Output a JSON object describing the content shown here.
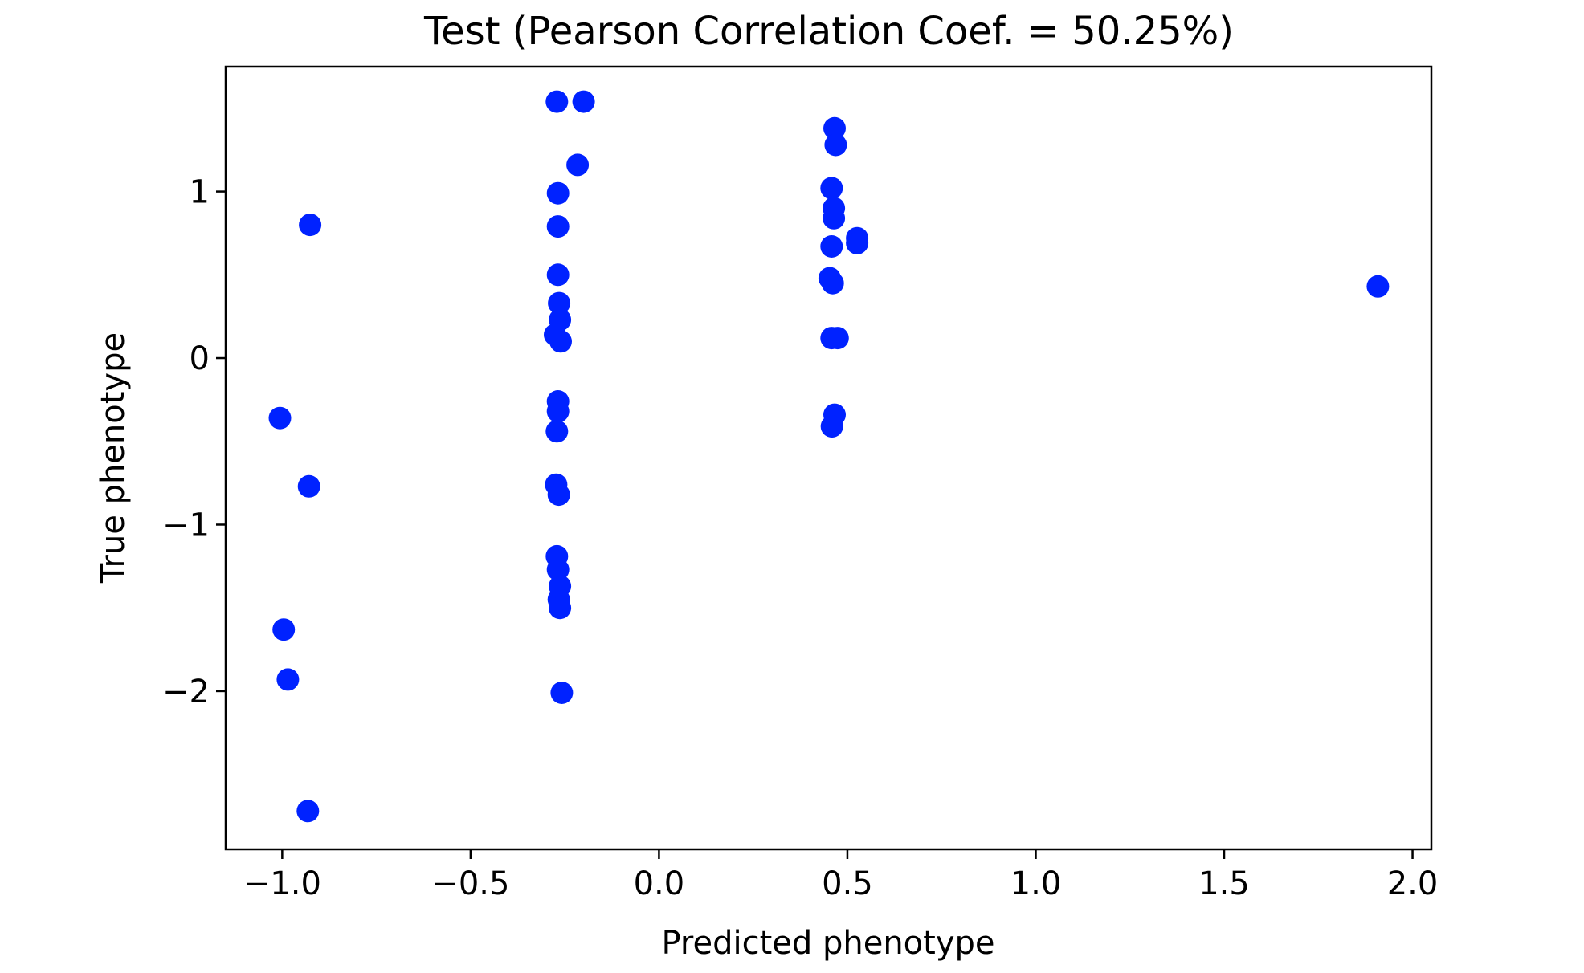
{
  "chart_data": {
    "type": "scatter",
    "title": "Test (Pearson Correlation Coef. = 50.25%)",
    "xlabel": "Predicted phenotype",
    "ylabel": "True phenotype",
    "xlim": [
      -1.15,
      2.05
    ],
    "ylim": [
      -2.95,
      1.75
    ],
    "grid": false,
    "x_ticks": [
      {
        "value": -1.0,
        "label": "−1.0"
      },
      {
        "value": -0.5,
        "label": "−0.5"
      },
      {
        "value": 0.0,
        "label": "0.0"
      },
      {
        "value": 0.5,
        "label": "0.5"
      },
      {
        "value": 1.0,
        "label": "1.0"
      },
      {
        "value": 1.5,
        "label": "1.5"
      },
      {
        "value": 2.0,
        "label": "2.0"
      }
    ],
    "y_ticks": [
      {
        "value": 1,
        "label": "1"
      },
      {
        "value": 0,
        "label": "0"
      },
      {
        "value": -1,
        "label": "−1"
      },
      {
        "value": -2,
        "label": "−2"
      }
    ],
    "marker_color": "#0022ff",
    "points": [
      {
        "x": -0.926,
        "y": 0.8
      },
      {
        "x": -1.006,
        "y": -0.36
      },
      {
        "x": -0.929,
        "y": -0.77
      },
      {
        "x": -0.996,
        "y": -1.63
      },
      {
        "x": -0.985,
        "y": -1.93
      },
      {
        "x": -0.932,
        "y": -2.72
      },
      {
        "x": -0.271,
        "y": 1.54
      },
      {
        "x": -0.2,
        "y": 1.54
      },
      {
        "x": -0.216,
        "y": 1.16
      },
      {
        "x": -0.268,
        "y": 0.99
      },
      {
        "x": -0.268,
        "y": 0.79
      },
      {
        "x": -0.268,
        "y": 0.5
      },
      {
        "x": -0.265,
        "y": 0.33
      },
      {
        "x": -0.263,
        "y": 0.23
      },
      {
        "x": -0.276,
        "y": 0.14
      },
      {
        "x": -0.261,
        "y": 0.1
      },
      {
        "x": -0.268,
        "y": -0.26
      },
      {
        "x": -0.268,
        "y": -0.32
      },
      {
        "x": -0.271,
        "y": -0.44
      },
      {
        "x": -0.273,
        "y": -0.76
      },
      {
        "x": -0.266,
        "y": -0.82
      },
      {
        "x": -0.271,
        "y": -1.19
      },
      {
        "x": -0.268,
        "y": -1.27
      },
      {
        "x": -0.263,
        "y": -1.37
      },
      {
        "x": -0.266,
        "y": -1.45
      },
      {
        "x": -0.263,
        "y": -1.5
      },
      {
        "x": -0.258,
        "y": -2.01
      },
      {
        "x": 0.466,
        "y": 1.38
      },
      {
        "x": 0.469,
        "y": 1.28
      },
      {
        "x": 0.458,
        "y": 1.02
      },
      {
        "x": 0.464,
        "y": 0.9
      },
      {
        "x": 0.464,
        "y": 0.84
      },
      {
        "x": 0.526,
        "y": 0.72
      },
      {
        "x": 0.526,
        "y": 0.69
      },
      {
        "x": 0.458,
        "y": 0.67
      },
      {
        "x": 0.453,
        "y": 0.48
      },
      {
        "x": 0.461,
        "y": 0.45
      },
      {
        "x": 0.458,
        "y": 0.12
      },
      {
        "x": 0.474,
        "y": 0.12
      },
      {
        "x": 0.466,
        "y": -0.34
      },
      {
        "x": 0.459,
        "y": -0.41
      },
      {
        "x": 1.908,
        "y": 0.43
      }
    ]
  }
}
